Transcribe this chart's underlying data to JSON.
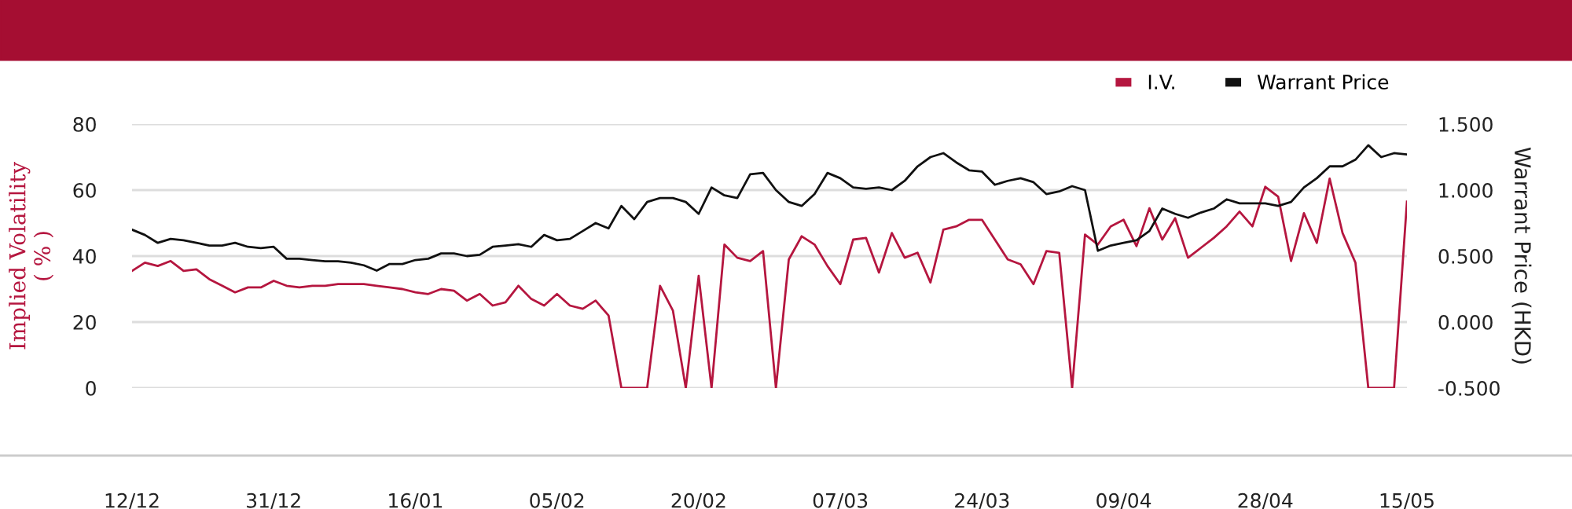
{
  "chart_data": {
    "type": "line",
    "categories": [
      "12/12",
      null,
      null,
      null,
      null,
      null,
      null,
      null,
      null,
      null,
      null,
      "31/12",
      null,
      null,
      null,
      null,
      null,
      null,
      null,
      null,
      null,
      null,
      "16/01",
      null,
      null,
      null,
      null,
      null,
      null,
      null,
      null,
      null,
      null,
      "05/02",
      null,
      null,
      null,
      null,
      null,
      null,
      null,
      null,
      null,
      null,
      "20/02",
      null,
      null,
      null,
      null,
      null,
      null,
      null,
      null,
      null,
      null,
      "07/03",
      null,
      null,
      null,
      null,
      null,
      null,
      null,
      null,
      null,
      null,
      "24/03",
      null,
      null,
      null,
      null,
      null,
      null,
      null,
      null,
      null,
      null,
      "09/04",
      null,
      null,
      null,
      null,
      null,
      null,
      null,
      null,
      null,
      null,
      "28/04",
      null,
      null,
      null,
      null,
      null,
      null,
      null,
      null,
      null,
      null,
      "15/05"
    ],
    "series": [
      {
        "name": "I.V.",
        "color": "#b5163f",
        "values": [
          35.5,
          38,
          37,
          38.5,
          35.5,
          36,
          33,
          31,
          29,
          30.5,
          30.5,
          32.5,
          31,
          30.5,
          31,
          31,
          31.5,
          31.5,
          31.5,
          31,
          30.5,
          30,
          29,
          28.5,
          30,
          29.5,
          26.5,
          28.5,
          25,
          26,
          31,
          27,
          25,
          28.5,
          25,
          24,
          26.5,
          22,
          0,
          0,
          0,
          31,
          23.5,
          0,
          34,
          0,
          43.5,
          39.5,
          38.5,
          41.5,
          0,
          39,
          46,
          43.5,
          37,
          31.5,
          45,
          45.5,
          35,
          47,
          39.5,
          41,
          32,
          48,
          49,
          51,
          51,
          45,
          39,
          37.5,
          31.5,
          41.5,
          41,
          0,
          46.5,
          43.5,
          49,
          51,
          43,
          54.5,
          45,
          51.5,
          39.5,
          42.5,
          45.5,
          49,
          53.5,
          49,
          61,
          58,
          38.5,
          53,
          44,
          63.5,
          47,
          38,
          0,
          0,
          0,
          56.5
        ]
      },
      {
        "name": "Warrant Price",
        "color": "#111111",
        "axis": "y2",
        "values": [
          0.7,
          0.66,
          0.6,
          0.63,
          0.62,
          0.6,
          0.58,
          0.58,
          0.6,
          0.57,
          0.56,
          0.57,
          0.48,
          0.48,
          0.47,
          0.46,
          0.46,
          0.45,
          0.43,
          0.39,
          0.44,
          0.44,
          0.47,
          0.48,
          0.52,
          0.52,
          0.5,
          0.51,
          0.57,
          0.58,
          0.59,
          0.57,
          0.66,
          0.62,
          0.63,
          0.69,
          0.75,
          0.71,
          0.88,
          0.78,
          0.91,
          0.94,
          0.94,
          0.91,
          0.82,
          1.02,
          0.96,
          0.94,
          1.12,
          1.13,
          1.0,
          0.91,
          0.88,
          0.97,
          1.13,
          1.09,
          1.02,
          1.01,
          1.02,
          1.0,
          1.07,
          1.18,
          1.25,
          1.28,
          1.21,
          1.15,
          1.14,
          1.04,
          1.07,
          1.09,
          1.06,
          0.97,
          0.99,
          1.03,
          1.0,
          0.54,
          0.58,
          0.6,
          0.62,
          0.69,
          0.86,
          0.82,
          0.79,
          0.83,
          0.86,
          0.93,
          0.9,
          0.9,
          0.9,
          0.88,
          0.91,
          1.02,
          1.09,
          1.18,
          1.18,
          1.23,
          1.34,
          1.25,
          1.28,
          1.27
        ]
      }
    ],
    "ylabel": "Implied Volatility\n( % )",
    "y2label": "Warrant Price (HKD)",
    "ylim": [
      0,
      80
    ],
    "yticks": [
      0,
      20,
      40,
      60,
      80
    ],
    "y2lim": [
      -0.5,
      1.5
    ],
    "y2ticks": [
      {
        "value": -0.5,
        "label": "-0.500"
      },
      {
        "value": 0,
        "label": "0.000"
      },
      {
        "value": 0.5,
        "label": "0.500"
      },
      {
        "value": 1,
        "label": "1.000"
      },
      {
        "value": 1.5,
        "label": "1.500"
      }
    ],
    "grid": "y",
    "legend": "top right",
    "marker": "none",
    "line_style": "solid"
  }
}
